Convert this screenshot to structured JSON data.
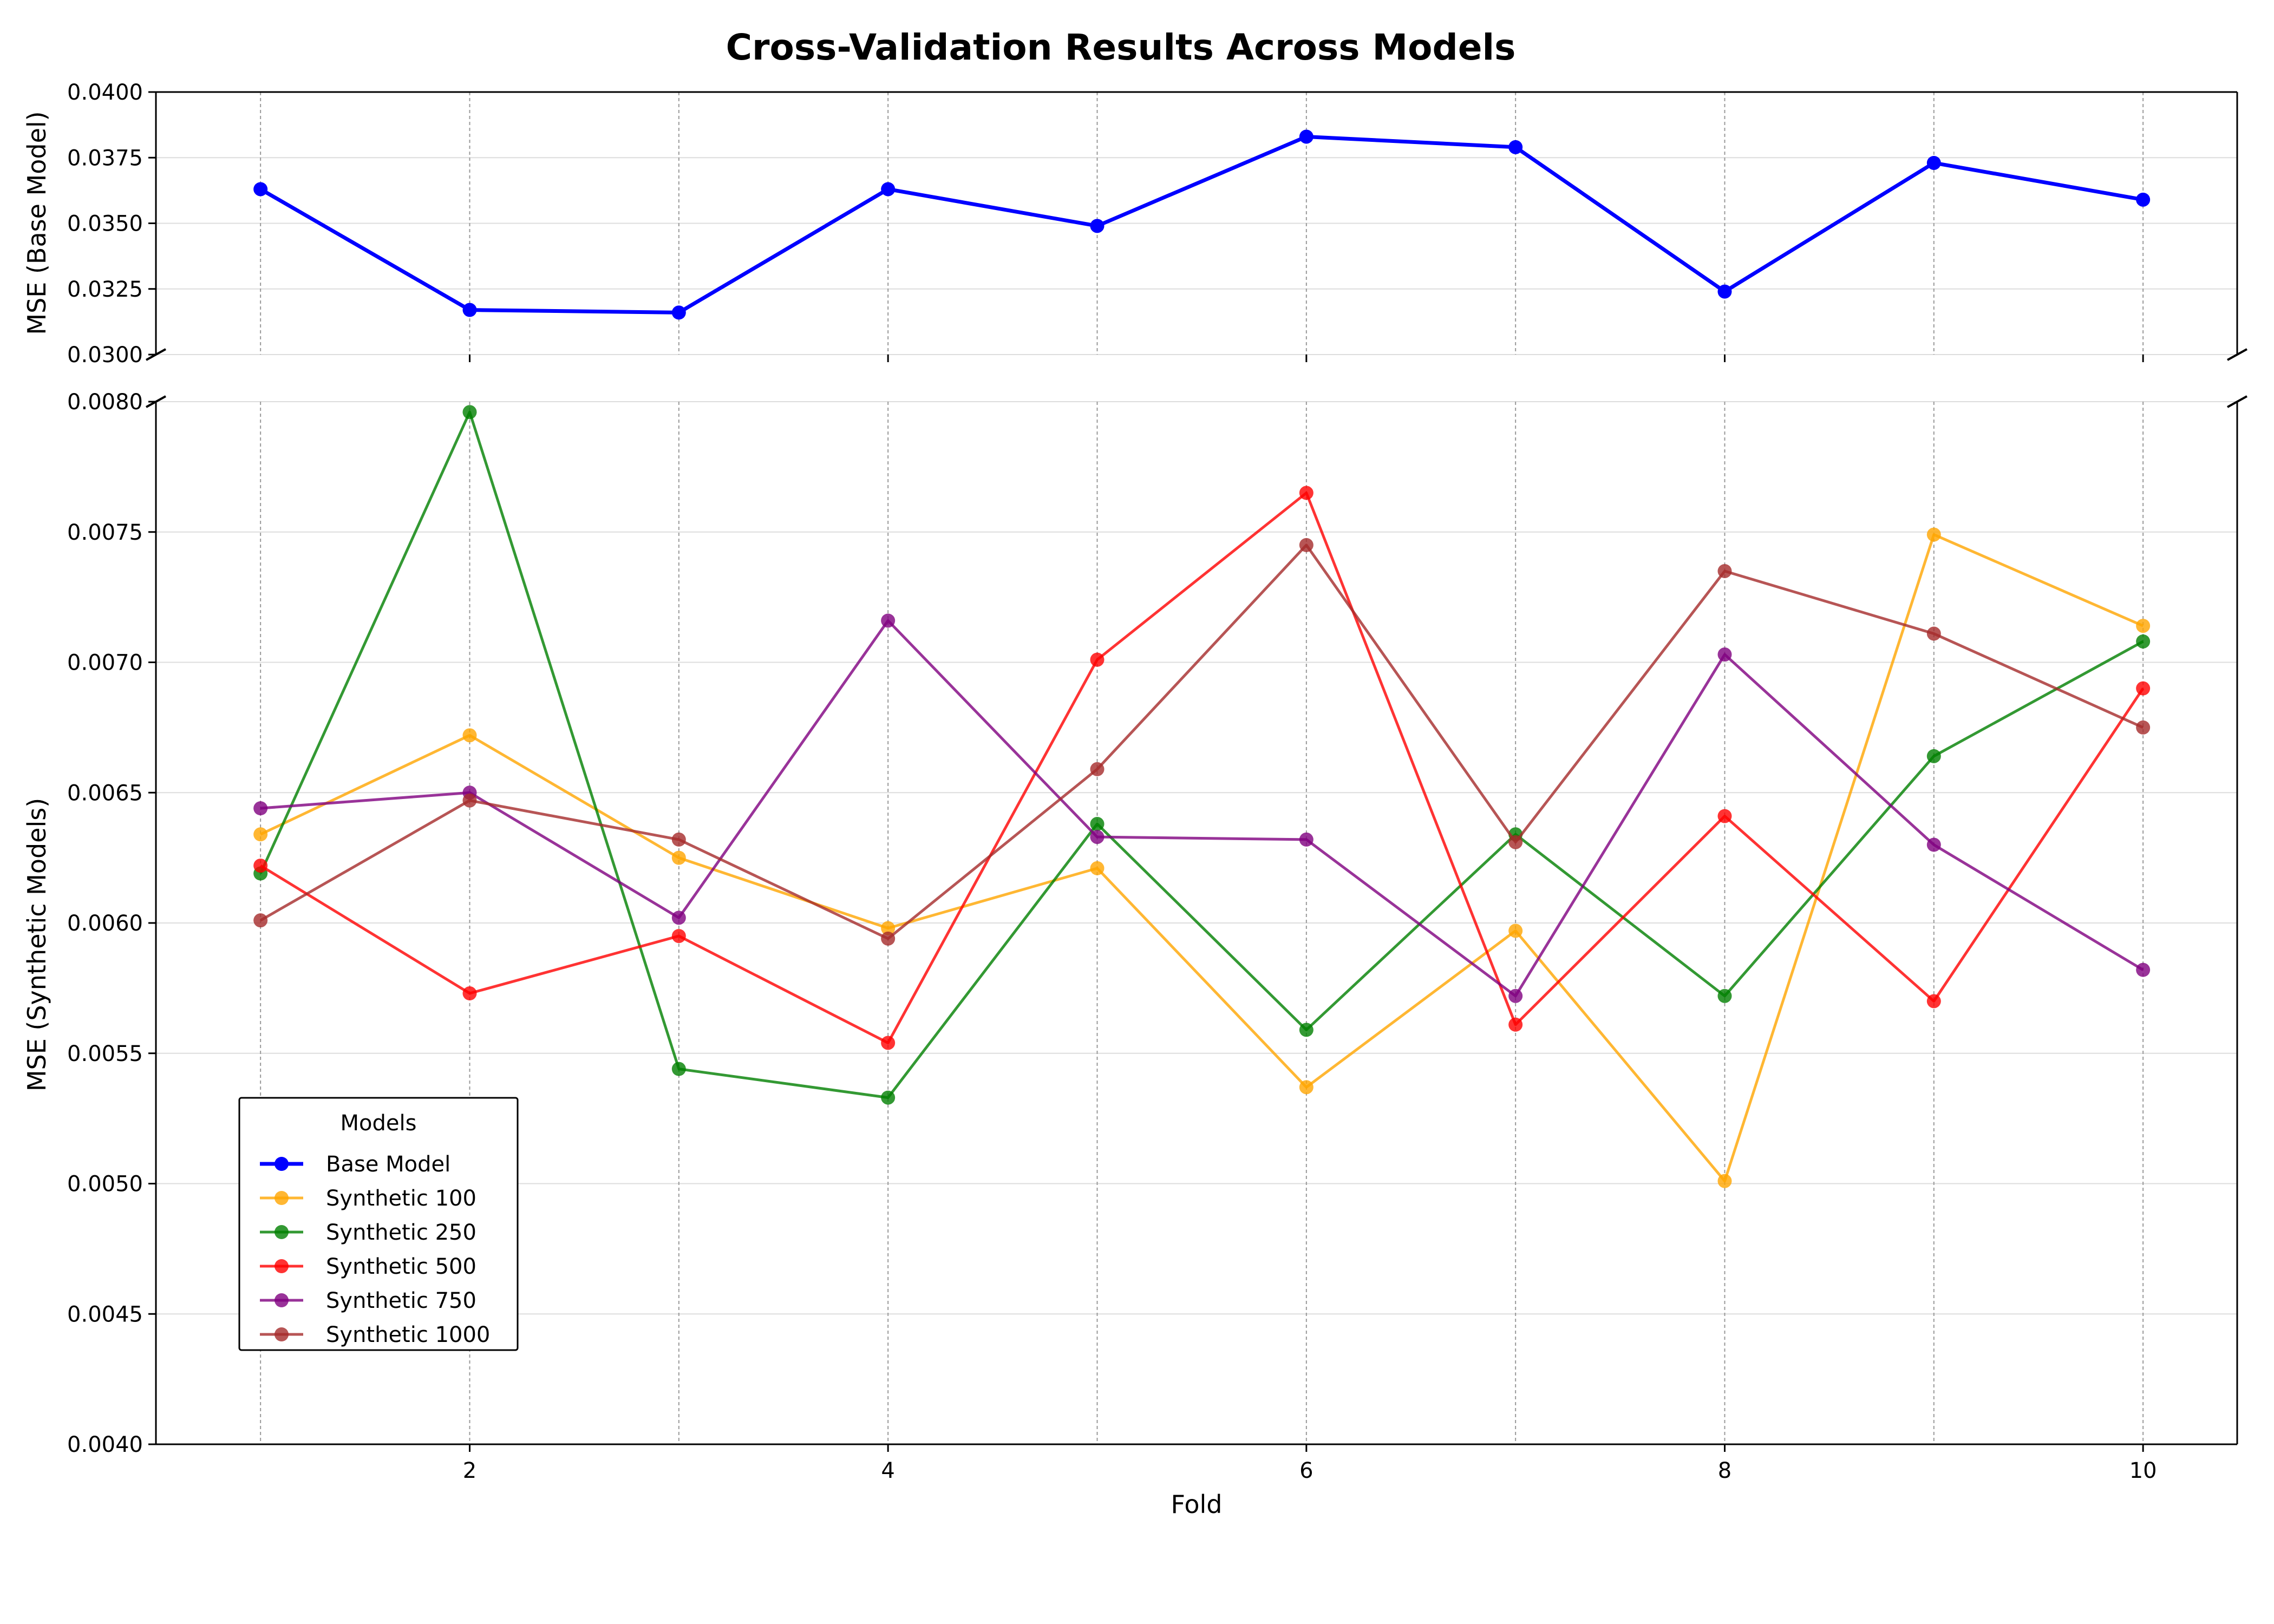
{
  "chart_data": {
    "type": "line",
    "title": "Cross-Validation Results Across Models",
    "xlabel": "Fold",
    "x": [
      1,
      2,
      3,
      4,
      5,
      6,
      7,
      8,
      9,
      10
    ],
    "xlim": [
      0.5,
      10.45
    ],
    "x_ticks": [
      2,
      4,
      6,
      8,
      10
    ],
    "x_vertical_lines": [
      1,
      2,
      3,
      4,
      5,
      6,
      7,
      8,
      9,
      10
    ],
    "grid": true,
    "broken_axis": true,
    "panels": {
      "top": {
        "ylabel": "MSE (Base Model)",
        "ylim": [
          0.03,
          0.04
        ],
        "y_ticks": [
          0.03,
          0.0325,
          0.035,
          0.0375,
          0.04
        ],
        "y_tick_labels": [
          "0.0300",
          "0.0325",
          "0.0350",
          "0.0375",
          "0.0400"
        ]
      },
      "bottom": {
        "ylabel": "MSE (Synthetic Models)",
        "ylim": [
          0.004,
          0.008
        ],
        "y_ticks": [
          0.004,
          0.0045,
          0.005,
          0.0055,
          0.006,
          0.0065,
          0.007,
          0.0075,
          0.008
        ],
        "y_tick_labels": [
          "0.0040",
          "0.0045",
          "0.0050",
          "0.0055",
          "0.0060",
          "0.0065",
          "0.0070",
          "0.0075",
          "0.0080"
        ]
      }
    },
    "legend": {
      "title": "Models",
      "placement": "lower-left"
    },
    "series": [
      {
        "name": "Base Model",
        "panel": "top",
        "color": "#0000ff",
        "values": [
          0.0363,
          0.0317,
          0.0316,
          0.0363,
          0.0349,
          0.0383,
          0.0379,
          0.0324,
          0.0373,
          0.0359
        ]
      },
      {
        "name": "Synthetic 100",
        "panel": "bottom",
        "color": "#ffa500",
        "values": [
          0.00634,
          0.00672,
          0.00625,
          0.00598,
          0.00621,
          0.00537,
          0.00597,
          0.00501,
          0.00749,
          0.00714
        ]
      },
      {
        "name": "Synthetic 250",
        "panel": "bottom",
        "color": "#008000",
        "values": [
          0.00619,
          0.00796,
          0.00544,
          0.00533,
          0.00638,
          0.00559,
          0.00634,
          0.00572,
          0.00664,
          0.00708
        ]
      },
      {
        "name": "Synthetic 500",
        "panel": "bottom",
        "color": "#ff0000",
        "values": [
          0.00622,
          0.00573,
          0.00595,
          0.00554,
          0.00701,
          0.00765,
          0.00561,
          0.00641,
          0.0057,
          0.0069
        ]
      },
      {
        "name": "Synthetic 750",
        "panel": "bottom",
        "color": "#800080",
        "values": [
          0.00644,
          0.0065,
          0.00602,
          0.00716,
          0.00633,
          0.00632,
          0.00572,
          0.00703,
          0.0063,
          0.00582
        ]
      },
      {
        "name": "Synthetic 1000",
        "panel": "bottom",
        "color": "#a52a2a",
        "values": [
          0.00601,
          0.00647,
          0.00632,
          0.00594,
          0.00659,
          0.00745,
          0.00631,
          0.00735,
          0.00711,
          0.00675
        ]
      }
    ]
  }
}
